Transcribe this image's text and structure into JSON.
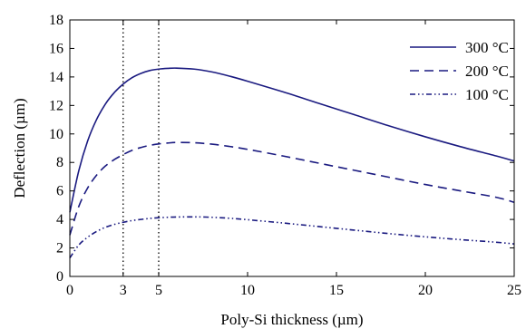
{
  "chart_data": {
    "type": "line",
    "title": "",
    "xlabel": "Poly-Si thickness (µm)",
    "ylabel": "Deflection (µm)",
    "xlim": [
      0,
      25
    ],
    "ylim": [
      0,
      18
    ],
    "xticks": [
      0,
      3,
      5,
      10,
      15,
      20,
      25
    ],
    "xtick_labels": [
      "0",
      "3",
      "5",
      "10",
      "15",
      "20",
      "25"
    ],
    "yticks": [
      0,
      2,
      4,
      6,
      8,
      10,
      12,
      14,
      16,
      18
    ],
    "ytick_labels": [
      "0",
      "2",
      "4",
      "6",
      "8",
      "10",
      "12",
      "14",
      "16",
      "18"
    ],
    "grid": false,
    "legend_position": "top-right",
    "vlines": [
      3,
      5
    ],
    "series_color": "#1a1a80",
    "series": [
      {
        "name": "300 °C",
        "style": "solid",
        "x": [
          0,
          0.5,
          1,
          1.5,
          2,
          2.5,
          3,
          3.5,
          4,
          4.5,
          5,
          5.5,
          6,
          7,
          8,
          9,
          10,
          12,
          14,
          16,
          18,
          20,
          22,
          24,
          25
        ],
        "y": [
          4.5,
          7.4,
          9.5,
          11.0,
          12.1,
          12.9,
          13.5,
          13.95,
          14.25,
          14.45,
          14.55,
          14.6,
          14.62,
          14.55,
          14.35,
          14.05,
          13.7,
          12.95,
          12.15,
          11.35,
          10.55,
          9.8,
          9.1,
          8.45,
          8.1
        ]
      },
      {
        "name": "200 °C",
        "style": "dashed",
        "x": [
          0,
          0.5,
          1,
          1.5,
          2,
          2.5,
          3,
          3.5,
          4,
          4.5,
          5,
          5.5,
          6,
          7,
          8,
          9,
          10,
          12,
          14,
          16,
          18,
          20,
          22,
          24,
          25
        ],
        "y": [
          2.9,
          4.9,
          6.2,
          7.1,
          7.75,
          8.2,
          8.55,
          8.85,
          9.05,
          9.2,
          9.3,
          9.36,
          9.4,
          9.38,
          9.28,
          9.12,
          8.92,
          8.45,
          7.95,
          7.45,
          6.95,
          6.45,
          6.0,
          5.55,
          5.2
        ]
      },
      {
        "name": "100 °C",
        "style": "dash-dot-dot",
        "x": [
          0,
          0.5,
          1,
          1.5,
          2,
          2.5,
          3,
          3.5,
          4,
          4.5,
          5,
          5.5,
          6,
          7,
          8,
          9,
          10,
          12,
          14,
          16,
          18,
          20,
          22,
          24,
          25
        ],
        "y": [
          1.3,
          2.2,
          2.75,
          3.15,
          3.45,
          3.65,
          3.8,
          3.92,
          4.0,
          4.07,
          4.12,
          4.15,
          4.17,
          4.18,
          4.15,
          4.08,
          3.98,
          3.75,
          3.5,
          3.25,
          3.0,
          2.78,
          2.58,
          2.4,
          2.28
        ]
      }
    ]
  }
}
